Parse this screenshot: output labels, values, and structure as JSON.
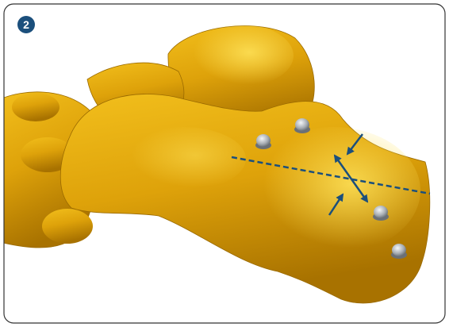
{
  "badge": "2"
}
